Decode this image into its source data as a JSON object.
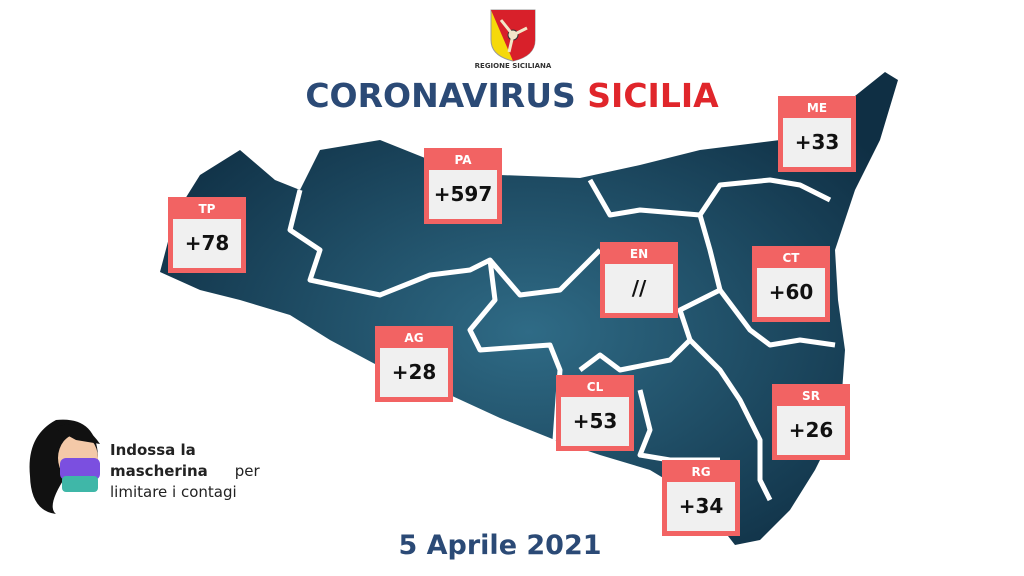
{
  "header": {
    "logo_text": "REGIONE SICILIANA",
    "title_part1": "CORONAVIRUS",
    "title_part2": "SICILIA"
  },
  "colors": {
    "title_blue": "#2b4a76",
    "title_red": "#e0262b",
    "box_red": "#f26363",
    "map": "#173f55"
  },
  "provinces": [
    {
      "code": "TP",
      "value": "+78"
    },
    {
      "code": "PA",
      "value": "+597"
    },
    {
      "code": "ME",
      "value": "+33"
    },
    {
      "code": "EN",
      "value": "//"
    },
    {
      "code": "CT",
      "value": "+60"
    },
    {
      "code": "AG",
      "value": "+28"
    },
    {
      "code": "CL",
      "value": "+53"
    },
    {
      "code": "SR",
      "value": "+26"
    },
    {
      "code": "RG",
      "value": "+34"
    }
  ],
  "message": {
    "bold": "Indossa la mascherina",
    "rest1": "per",
    "rest2": "limitare i contagi"
  },
  "date": "5 Aprile 2021"
}
